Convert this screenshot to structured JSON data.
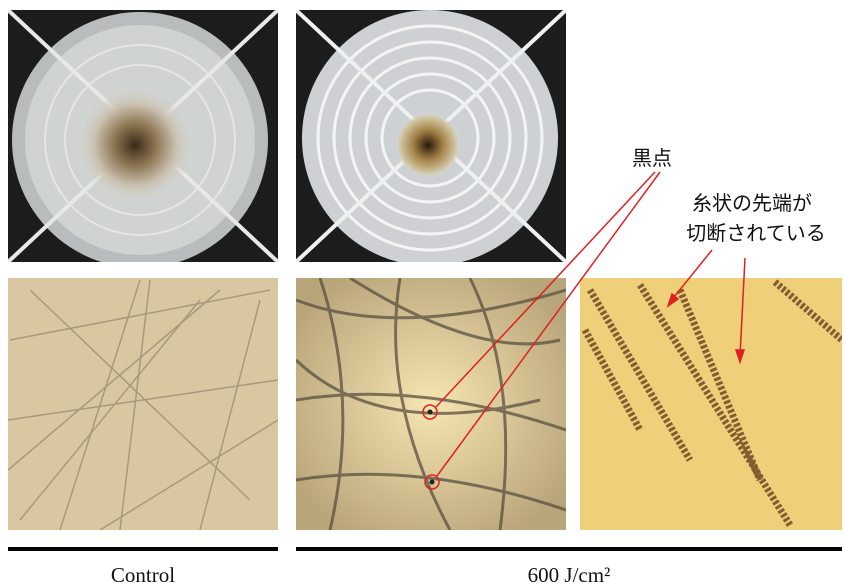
{
  "annotations": {
    "black_dot": "黒点",
    "filament_tip": [
      "糸状の先端が",
      "切断されている"
    ]
  },
  "labels": {
    "control": "Control",
    "treated": "600 J/cm²"
  }
}
